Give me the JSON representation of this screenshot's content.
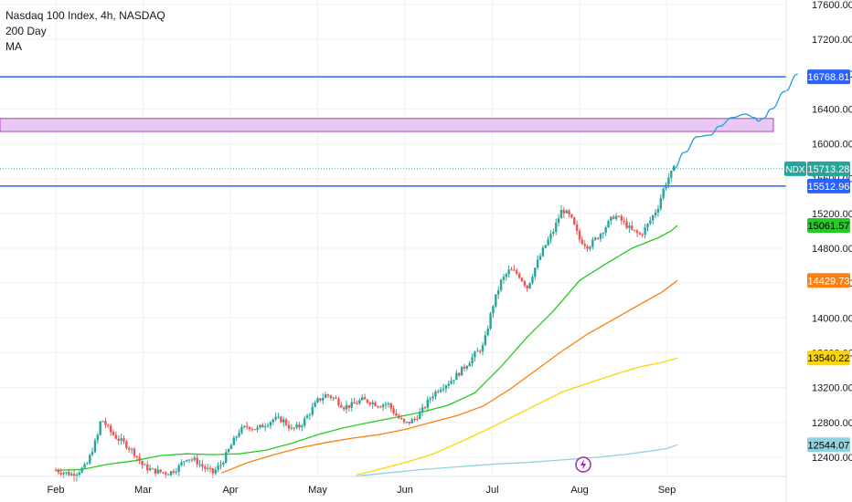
{
  "header": {
    "symbol_line": "Nasdaq 100 Index, 4h, NASDAQ",
    "indicator_line1": "200 Day",
    "indicator_line2": "MA"
  },
  "colors": {
    "up": "#26a69a",
    "down": "#ef5350",
    "ma_green": "#22cc22",
    "ma_orange": "#ff7f0e",
    "ma_yellow": "#ffd500",
    "ma_lightblue": "#8fd3e0",
    "level_blue": "#2962ff",
    "zone_fill": "#e9c8f3",
    "zone_border": "#b040c0",
    "projection": "#1aa3d9",
    "grid": "#eef0f3",
    "axis_text": "#131722"
  },
  "chart_data": {
    "type": "candlestick",
    "title": "Nasdaq 100 Index, 4h, NASDAQ",
    "ylim": [
      12180,
      17650
    ],
    "y_ticks": [
      12400,
      12800,
      13200,
      13600,
      14000,
      14400,
      14800,
      15200,
      15600,
      16000,
      16400,
      16800,
      17200,
      17600
    ],
    "y_tick_labels": [
      "12400.00",
      "12800.00",
      "13200.00",
      "13600.00",
      "14000.00",
      "14400.00",
      "14800.00",
      "15200.00",
      "15600.00",
      "16000.00",
      "16400.00",
      "16800.00",
      "17200.00",
      "17600.00"
    ],
    "x_labels": [
      {
        "label": "Feb",
        "month": 1
      },
      {
        "label": "Mar",
        "month": 2
      },
      {
        "label": "Apr",
        "month": 3
      },
      {
        "label": "May",
        "month": 4
      },
      {
        "label": "Jun",
        "month": 5
      },
      {
        "label": "Jul",
        "month": 6
      },
      {
        "label": "Aug",
        "month": 7
      },
      {
        "label": "Sep",
        "month": 8
      }
    ],
    "price_series": {
      "name": "NDX",
      "points": [
        [
          0.0,
          12250
        ],
        [
          0.2,
          12200
        ],
        [
          0.35,
          12300
        ],
        [
          0.48,
          12650
        ],
        [
          0.52,
          12850
        ],
        [
          0.62,
          12700
        ],
        [
          0.7,
          12620
        ],
        [
          0.8,
          12550
        ],
        [
          0.9,
          12450
        ],
        [
          1.0,
          12300
        ],
        [
          1.1,
          12250
        ],
        [
          1.2,
          12230
        ],
        [
          1.3,
          12220
        ],
        [
          1.4,
          12280
        ],
        [
          1.5,
          12400
        ],
        [
          1.6,
          12360
        ],
        [
          1.7,
          12280
        ],
        [
          1.8,
          12220
        ],
        [
          1.9,
          12330
        ],
        [
          2.0,
          12520
        ],
        [
          2.1,
          12700
        ],
        [
          2.2,
          12760
        ],
        [
          2.3,
          12720
        ],
        [
          2.4,
          12780
        ],
        [
          2.5,
          12840
        ],
        [
          2.6,
          12830
        ],
        [
          2.7,
          12720
        ],
        [
          2.8,
          12760
        ],
        [
          2.9,
          12900
        ],
        [
          3.0,
          13050
        ],
        [
          3.1,
          13120
        ],
        [
          3.2,
          13070
        ],
        [
          3.3,
          12980
        ],
        [
          3.4,
          13000
        ],
        [
          3.5,
          13060
        ],
        [
          3.6,
          13040
        ],
        [
          3.7,
          13000
        ],
        [
          3.8,
          13020
        ],
        [
          3.9,
          12880
        ],
        [
          4.0,
          12780
        ],
        [
          4.1,
          12830
        ],
        [
          4.2,
          12940
        ],
        [
          4.3,
          13100
        ],
        [
          4.4,
          13200
        ],
        [
          4.5,
          13260
        ],
        [
          4.6,
          13350
        ],
        [
          4.7,
          13460
        ],
        [
          4.8,
          13580
        ],
        [
          4.9,
          13680
        ],
        [
          5.0,
          14120
        ],
        [
          5.1,
          14420
        ],
        [
          5.2,
          14550
        ],
        [
          5.3,
          14500
        ],
        [
          5.4,
          14350
        ],
        [
          5.5,
          14600
        ],
        [
          5.6,
          14820
        ],
        [
          5.7,
          15000
        ],
        [
          5.8,
          15250
        ],
        [
          5.9,
          15150
        ],
        [
          6.0,
          14900
        ],
        [
          6.1,
          14820
        ],
        [
          6.2,
          14920
        ],
        [
          6.3,
          15050
        ],
        [
          6.4,
          15180
        ],
        [
          6.5,
          15100
        ],
        [
          6.6,
          15000
        ],
        [
          6.7,
          14950
        ],
        [
          6.8,
          15100
        ],
        [
          6.9,
          15280
        ],
        [
          6.95,
          15450
        ],
        [
          7.0,
          15580
        ],
        [
          7.05,
          15660
        ],
        [
          7.08,
          15713.28
        ]
      ]
    },
    "projection": {
      "points": [
        [
          7.08,
          15713
        ],
        [
          7.2,
          15900
        ],
        [
          7.35,
          16080
        ],
        [
          7.5,
          16100
        ],
        [
          7.6,
          16200
        ],
        [
          7.75,
          16300
        ],
        [
          7.9,
          16340
        ],
        [
          8.0,
          16300
        ],
        [
          8.05,
          16260
        ],
        [
          8.1,
          16290
        ],
        [
          8.2,
          16400
        ],
        [
          8.35,
          16600
        ],
        [
          8.5,
          16800
        ]
      ]
    },
    "moving_averages": [
      {
        "points": [
          [
            0.0,
            12250
          ],
          [
            0.3,
            12260
          ],
          [
            0.6,
            12320
          ],
          [
            0.9,
            12360
          ],
          [
            1.2,
            12420
          ],
          [
            1.5,
            12440
          ],
          [
            1.8,
            12430
          ],
          [
            2.1,
            12440
          ],
          [
            2.4,
            12480
          ],
          [
            2.7,
            12560
          ],
          [
            3.0,
            12660
          ],
          [
            3.3,
            12740
          ],
          [
            3.6,
            12800
          ],
          [
            3.9,
            12860
          ],
          [
            4.2,
            12920
          ],
          [
            4.5,
            13000
          ],
          [
            4.8,
            13140
          ],
          [
            5.1,
            13440
          ],
          [
            5.4,
            13780
          ],
          [
            5.7,
            14080
          ],
          [
            6.0,
            14430
          ],
          [
            6.3,
            14620
          ],
          [
            6.6,
            14800
          ],
          [
            6.9,
            14920
          ],
          [
            7.05,
            15000
          ],
          [
            7.12,
            15061.57
          ]
        ]
      },
      {
        "points": [
          [
            1.9,
            12220
          ],
          [
            2.2,
            12340
          ],
          [
            2.5,
            12430
          ],
          [
            2.8,
            12510
          ],
          [
            3.1,
            12570
          ],
          [
            3.4,
            12620
          ],
          [
            3.7,
            12660
          ],
          [
            4.0,
            12720
          ],
          [
            4.3,
            12800
          ],
          [
            4.6,
            12880
          ],
          [
            4.9,
            12990
          ],
          [
            5.2,
            13180
          ],
          [
            5.5,
            13400
          ],
          [
            5.8,
            13620
          ],
          [
            6.1,
            13820
          ],
          [
            6.4,
            13990
          ],
          [
            6.7,
            14160
          ],
          [
            6.95,
            14300
          ],
          [
            7.12,
            14429.73
          ]
        ]
      },
      {
        "points": [
          [
            3.45,
            12200
          ],
          [
            3.7,
            12260
          ],
          [
            4.0,
            12340
          ],
          [
            4.3,
            12430
          ],
          [
            4.6,
            12560
          ],
          [
            4.9,
            12700
          ],
          [
            5.2,
            12850
          ],
          [
            5.5,
            13000
          ],
          [
            5.8,
            13150
          ],
          [
            6.1,
            13250
          ],
          [
            6.4,
            13350
          ],
          [
            6.7,
            13440
          ],
          [
            6.95,
            13490
          ],
          [
            7.12,
            13540.22
          ]
        ]
      },
      {
        "points": [
          [
            3.42,
            12182
          ],
          [
            3.8,
            12220
          ],
          [
            4.2,
            12260
          ],
          [
            4.6,
            12290
          ],
          [
            5.0,
            12320
          ],
          [
            5.4,
            12340
          ],
          [
            5.8,
            12370
          ],
          [
            6.2,
            12400
          ],
          [
            6.5,
            12430
          ],
          [
            6.8,
            12470
          ],
          [
            7.0,
            12500
          ],
          [
            7.12,
            12544.07
          ]
        ]
      }
    ],
    "horizontal_levels": [
      16768.81,
      15512.96
    ],
    "resistance_zone": {
      "low": 16140,
      "high": 16290
    },
    "current_price_line": 15713.28,
    "price_labels": [
      {
        "text": "16768.81",
        "value": 16768.81,
        "bg": "#2962ff",
        "fg": "#ffffff"
      },
      {
        "text": "15713.28",
        "value": 15713.28,
        "bg": "#26a69a",
        "fg": "#ffffff"
      },
      {
        "text": "15512.96",
        "value": 15512.96,
        "bg": "#2962ff",
        "fg": "#ffffff"
      },
      {
        "text": "15061.57",
        "value": 15061.57,
        "bg": "#22cc22",
        "fg": "#000000"
      },
      {
        "text": "14429.73",
        "value": 14429.73,
        "bg": "#ff7f0e",
        "fg": "#ffffff"
      },
      {
        "text": "13540.22",
        "value": 13540.22,
        "bg": "#ffd500",
        "fg": "#000000"
      },
      {
        "text": "12544.07",
        "value": 12544.07,
        "bg": "#8fd3e0",
        "fg": "#000000"
      }
    ],
    "symbol_tag": "NDX",
    "event_icon": "lightning-icon"
  }
}
